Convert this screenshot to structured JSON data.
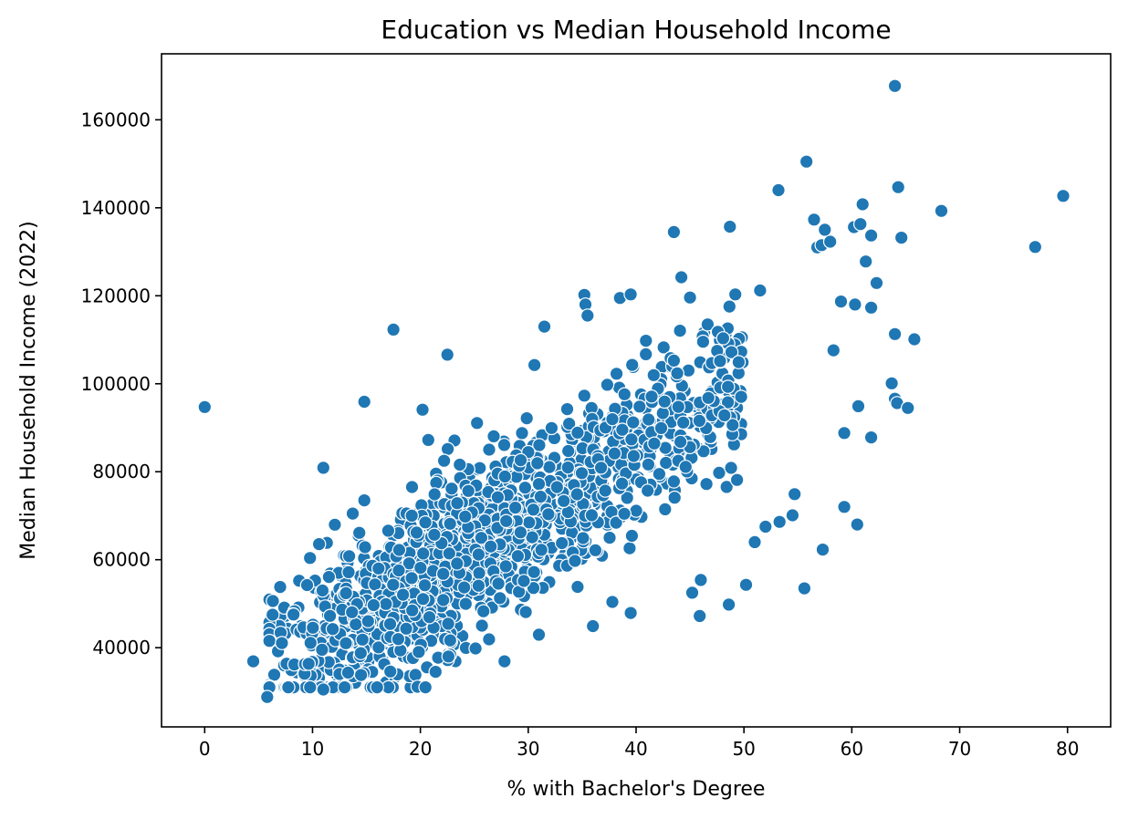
{
  "chart_data": {
    "type": "scatter",
    "title": "Education vs Median Household Income",
    "xlabel": "% with Bachelor's Degree",
    "ylabel": "Median Household Income (2022)",
    "xlim": [
      -4,
      84
    ],
    "ylim": [
      22000,
      175000
    ],
    "xticks": [
      0,
      10,
      20,
      30,
      40,
      50,
      60,
      70,
      80
    ],
    "yticks": [
      40000,
      60000,
      80000,
      100000,
      120000,
      140000,
      160000
    ],
    "grid": false,
    "legend": "none",
    "point_color": "#1f77b4",
    "points_notable": [
      {
        "x": 0.0,
        "y": 94700
      },
      {
        "x": 4.5,
        "y": 36900
      },
      {
        "x": 5.8,
        "y": 28800
      },
      {
        "x": 6.3,
        "y": 47500
      },
      {
        "x": 7.0,
        "y": 53800
      },
      {
        "x": 17.5,
        "y": 112300
      },
      {
        "x": 14.8,
        "y": 95900
      },
      {
        "x": 11.0,
        "y": 80900
      },
      {
        "x": 22.5,
        "y": 106600
      },
      {
        "x": 20.2,
        "y": 94100
      },
      {
        "x": 31.5,
        "y": 113000
      },
      {
        "x": 35.2,
        "y": 120200
      },
      {
        "x": 35.3,
        "y": 118000
      },
      {
        "x": 35.5,
        "y": 115500
      },
      {
        "x": 38.5,
        "y": 119500
      },
      {
        "x": 39.5,
        "y": 120300
      },
      {
        "x": 43.5,
        "y": 134500
      },
      {
        "x": 44.2,
        "y": 124200
      },
      {
        "x": 45.0,
        "y": 119600
      },
      {
        "x": 48.7,
        "y": 135700
      },
      {
        "x": 49.2,
        "y": 120300
      },
      {
        "x": 51.5,
        "y": 121200
      },
      {
        "x": 53.2,
        "y": 144000
      },
      {
        "x": 55.8,
        "y": 150500
      },
      {
        "x": 56.5,
        "y": 137300
      },
      {
        "x": 56.8,
        "y": 131000
      },
      {
        "x": 57.2,
        "y": 131500
      },
      {
        "x": 57.5,
        "y": 135000
      },
      {
        "x": 58.0,
        "y": 132300
      },
      {
        "x": 60.2,
        "y": 135600
      },
      {
        "x": 60.8,
        "y": 136300
      },
      {
        "x": 61.0,
        "y": 140800
      },
      {
        "x": 61.3,
        "y": 127800
      },
      {
        "x": 61.8,
        "y": 133700
      },
      {
        "x": 64.0,
        "y": 167700
      },
      {
        "x": 64.3,
        "y": 144700
      },
      {
        "x": 64.6,
        "y": 133200
      },
      {
        "x": 68.3,
        "y": 139300
      },
      {
        "x": 77.0,
        "y": 131100
      },
      {
        "x": 79.6,
        "y": 142700
      },
      {
        "x": 62.3,
        "y": 122900
      },
      {
        "x": 61.8,
        "y": 117300
      },
      {
        "x": 59.0,
        "y": 118700
      },
      {
        "x": 60.3,
        "y": 118000
      },
      {
        "x": 58.3,
        "y": 107600
      },
      {
        "x": 64.0,
        "y": 111300
      },
      {
        "x": 65.8,
        "y": 110100
      },
      {
        "x": 63.7,
        "y": 100100
      },
      {
        "x": 64.0,
        "y": 96600
      },
      {
        "x": 64.2,
        "y": 95600
      },
      {
        "x": 65.2,
        "y": 94500
      },
      {
        "x": 60.6,
        "y": 94900
      },
      {
        "x": 61.8,
        "y": 87800
      },
      {
        "x": 59.3,
        "y": 88800
      },
      {
        "x": 59.3,
        "y": 72000
      },
      {
        "x": 60.5,
        "y": 68000
      },
      {
        "x": 57.3,
        "y": 62300
      },
      {
        "x": 55.6,
        "y": 53500
      },
      {
        "x": 54.7,
        "y": 74900
      },
      {
        "x": 54.5,
        "y": 70100
      },
      {
        "x": 53.3,
        "y": 68600
      },
      {
        "x": 52.0,
        "y": 67500
      },
      {
        "x": 51.0,
        "y": 64000
      },
      {
        "x": 50.2,
        "y": 54300
      },
      {
        "x": 48.6,
        "y": 49800
      },
      {
        "x": 45.9,
        "y": 47200
      },
      {
        "x": 45.2,
        "y": 52500
      },
      {
        "x": 46.0,
        "y": 55400
      },
      {
        "x": 37.8,
        "y": 50400
      },
      {
        "x": 36.0,
        "y": 44900
      },
      {
        "x": 27.8,
        "y": 36900
      },
      {
        "x": 22.6,
        "y": 38000
      },
      {
        "x": 11.0,
        "y": 30500
      },
      {
        "x": 14.5,
        "y": 33800
      },
      {
        "x": 39.5,
        "y": 47900
      }
    ]
  }
}
